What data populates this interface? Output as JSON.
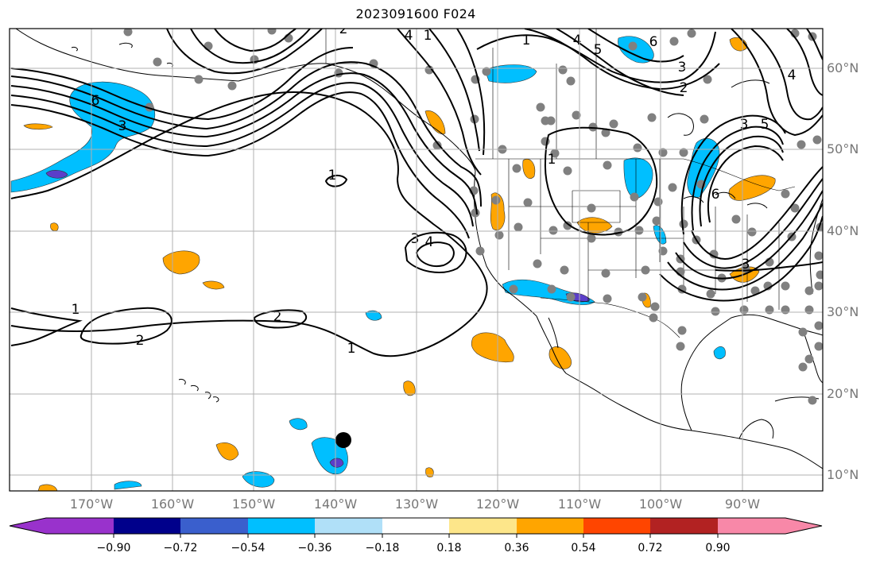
{
  "title": "2023091600 F024",
  "lat_labels": [
    "60°N",
    "50°N",
    "40°N",
    "30°N",
    "20°N",
    "10°N"
  ],
  "lon_labels": [
    "170°W",
    "160°W",
    "150°W",
    "140°W",
    "130°W",
    "120°W",
    "110°W",
    "100°W",
    "90°W"
  ],
  "colorbar": {
    "ticks": [
      "−0.90",
      "−0.72",
      "−0.54",
      "−0.36",
      "−0.18",
      "0.18",
      "0.36",
      "0.54",
      "0.72",
      "0.90"
    ],
    "colors": [
      "#9932cc",
      "#00008b",
      "#3a5fcd",
      "#00bfff",
      "#b0e0f8",
      "#ffffff",
      "#fde68a",
      "#ffa500",
      "#ff4500",
      "#b22222",
      "#f888a8"
    ]
  },
  "contour_labels": [
    {
      "text": "6"
    },
    {
      "text": "3"
    },
    {
      "text": "1"
    },
    {
      "text": "2"
    },
    {
      "text": "1"
    },
    {
      "text": "2"
    },
    {
      "text": "1"
    },
    {
      "text": "3"
    },
    {
      "text": "4"
    },
    {
      "text": "1"
    },
    {
      "text": "4"
    },
    {
      "text": "5"
    },
    {
      "text": "6"
    },
    {
      "text": "3"
    },
    {
      "text": "2"
    },
    {
      "text": "1"
    },
    {
      "text": "3"
    },
    {
      "text": "5"
    },
    {
      "text": "4"
    },
    {
      "text": "6"
    },
    {
      "text": "3"
    },
    {
      "text": "4"
    },
    {
      "text": "2"
    },
    {
      "text": "1"
    }
  ]
}
